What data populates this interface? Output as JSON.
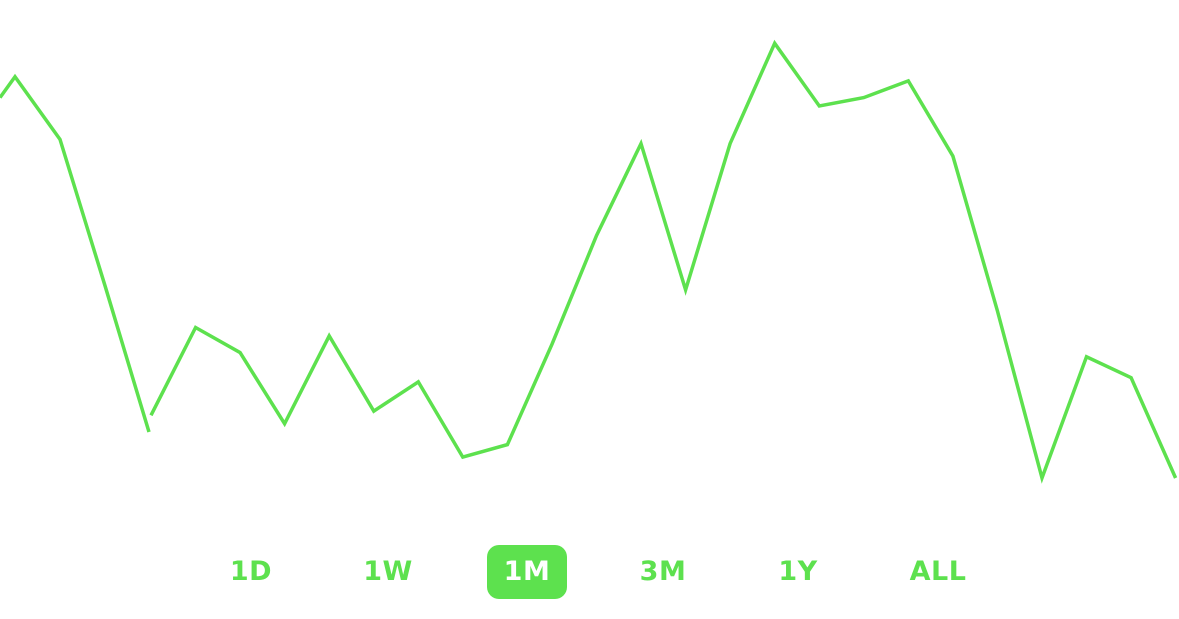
{
  "theme": {
    "accent": "#5de14e",
    "background": "#ffffff"
  },
  "chart_data": {
    "type": "line",
    "title": "",
    "xlabel": "",
    "ylabel": "",
    "grid": false,
    "legend": "none",
    "ylim": [
      0,
      100
    ],
    "series": [
      {
        "color": "#5de14e",
        "segments": [
          [
            91,
            96,
            81,
            46,
            11
          ],
          [
            15,
            36,
            30,
            13,
            34,
            16,
            23,
            5,
            8,
            32,
            58,
            80,
            45,
            80,
            104,
            89,
            91,
            95,
            77,
            40,
            0,
            29,
            24,
            0
          ]
        ]
      }
    ]
  },
  "range_selector": {
    "selected": "1M",
    "options": [
      {
        "label": "1D"
      },
      {
        "label": "1W"
      },
      {
        "label": "1M"
      },
      {
        "label": "3M"
      },
      {
        "label": "1Y"
      },
      {
        "label": "ALL"
      }
    ]
  }
}
